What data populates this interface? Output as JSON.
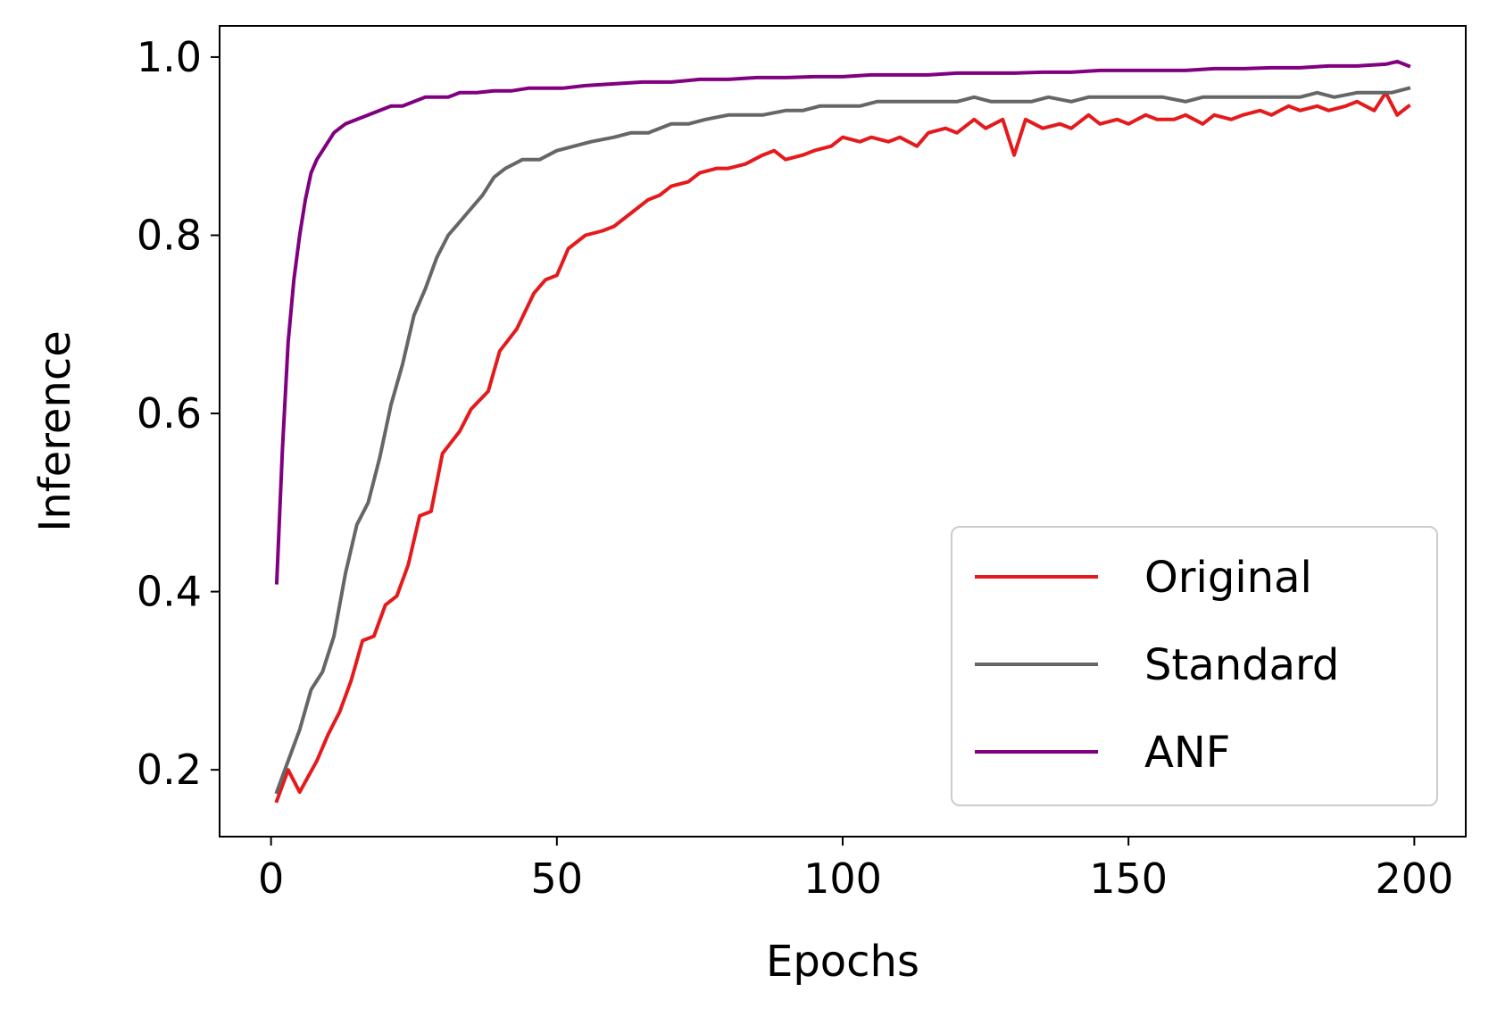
{
  "chart_data": {
    "type": "line",
    "title": "",
    "xlabel": "Epochs",
    "ylabel": "Inference",
    "xlim": [
      -9,
      209
    ],
    "ylim": [
      0.125,
      1.035
    ],
    "xticks": [
      0,
      50,
      100,
      150,
      200
    ],
    "xtick_labels": [
      "0",
      "50",
      "100",
      "150",
      "200"
    ],
    "yticks": [
      0.2,
      0.4,
      0.6,
      0.8,
      1.0
    ],
    "ytick_labels": [
      "0.2",
      "0.4",
      "0.6",
      "0.8",
      "1.0"
    ],
    "grid": false,
    "legend_position": "lower-right",
    "series": [
      {
        "name": "Original",
        "color": "#e41a1c",
        "x": [
          1,
          3,
          5,
          8,
          10,
          12,
          14,
          16,
          18,
          20,
          22,
          24,
          26,
          28,
          30,
          33,
          35,
          38,
          40,
          43,
          46,
          48,
          50,
          52,
          55,
          58,
          60,
          63,
          66,
          68,
          70,
          73,
          75,
          78,
          80,
          83,
          86,
          88,
          90,
          93,
          95,
          98,
          100,
          103,
          105,
          108,
          110,
          113,
          115,
          118,
          120,
          123,
          125,
          128,
          130,
          132,
          135,
          138,
          140,
          143,
          145,
          148,
          150,
          153,
          155,
          158,
          160,
          163,
          165,
          168,
          170,
          173,
          175,
          178,
          180,
          183,
          185,
          188,
          190,
          193,
          195,
          197,
          199
        ],
        "values": [
          0.165,
          0.2,
          0.175,
          0.21,
          0.24,
          0.265,
          0.3,
          0.345,
          0.35,
          0.385,
          0.395,
          0.43,
          0.485,
          0.49,
          0.555,
          0.58,
          0.605,
          0.625,
          0.67,
          0.695,
          0.735,
          0.75,
          0.755,
          0.785,
          0.8,
          0.805,
          0.81,
          0.825,
          0.84,
          0.845,
          0.855,
          0.86,
          0.87,
          0.875,
          0.875,
          0.88,
          0.89,
          0.895,
          0.885,
          0.89,
          0.895,
          0.9,
          0.91,
          0.905,
          0.91,
          0.905,
          0.91,
          0.9,
          0.915,
          0.92,
          0.915,
          0.93,
          0.92,
          0.93,
          0.89,
          0.93,
          0.92,
          0.925,
          0.92,
          0.935,
          0.925,
          0.93,
          0.925,
          0.935,
          0.93,
          0.93,
          0.935,
          0.925,
          0.935,
          0.93,
          0.935,
          0.94,
          0.935,
          0.945,
          0.94,
          0.945,
          0.94,
          0.945,
          0.95,
          0.94,
          0.96,
          0.935,
          0.945
        ]
      },
      {
        "name": "Standard",
        "color": "#666666",
        "x": [
          1,
          3,
          5,
          7,
          9,
          11,
          13,
          15,
          17,
          19,
          21,
          23,
          25,
          27,
          29,
          31,
          33,
          35,
          37,
          39,
          41,
          44,
          47,
          50,
          53,
          56,
          60,
          63,
          66,
          70,
          73,
          76,
          80,
          83,
          86,
          90,
          93,
          96,
          100,
          103,
          106,
          110,
          113,
          116,
          120,
          123,
          126,
          130,
          133,
          136,
          140,
          143,
          146,
          150,
          153,
          156,
          160,
          163,
          166,
          170,
          173,
          176,
          180,
          183,
          186,
          190,
          193,
          196,
          199
        ],
        "values": [
          0.175,
          0.21,
          0.245,
          0.29,
          0.31,
          0.35,
          0.42,
          0.475,
          0.5,
          0.55,
          0.61,
          0.655,
          0.71,
          0.74,
          0.775,
          0.8,
          0.815,
          0.83,
          0.845,
          0.865,
          0.875,
          0.885,
          0.885,
          0.895,
          0.9,
          0.905,
          0.91,
          0.915,
          0.915,
          0.925,
          0.925,
          0.93,
          0.935,
          0.935,
          0.935,
          0.94,
          0.94,
          0.945,
          0.945,
          0.945,
          0.95,
          0.95,
          0.95,
          0.95,
          0.95,
          0.955,
          0.95,
          0.95,
          0.95,
          0.955,
          0.95,
          0.955,
          0.955,
          0.955,
          0.955,
          0.955,
          0.95,
          0.955,
          0.955,
          0.955,
          0.955,
          0.955,
          0.955,
          0.96,
          0.955,
          0.96,
          0.96,
          0.96,
          0.965
        ]
      },
      {
        "name": "ANF",
        "color": "#800080",
        "x": [
          1,
          2,
          3,
          4,
          5,
          6,
          7,
          8,
          9,
          10,
          11,
          12,
          13,
          15,
          17,
          19,
          21,
          23,
          25,
          27,
          29,
          31,
          33,
          36,
          39,
          42,
          45,
          48,
          51,
          55,
          60,
          65,
          70,
          75,
          80,
          85,
          90,
          95,
          100,
          105,
          110,
          115,
          120,
          125,
          130,
          135,
          140,
          145,
          150,
          155,
          160,
          165,
          170,
          175,
          180,
          185,
          190,
          195,
          197,
          199
        ],
        "values": [
          0.41,
          0.56,
          0.68,
          0.75,
          0.8,
          0.84,
          0.87,
          0.885,
          0.895,
          0.905,
          0.915,
          0.92,
          0.925,
          0.93,
          0.935,
          0.94,
          0.945,
          0.945,
          0.95,
          0.955,
          0.955,
          0.955,
          0.96,
          0.96,
          0.962,
          0.962,
          0.965,
          0.965,
          0.965,
          0.968,
          0.97,
          0.972,
          0.972,
          0.975,
          0.975,
          0.977,
          0.977,
          0.978,
          0.978,
          0.98,
          0.98,
          0.98,
          0.982,
          0.982,
          0.982,
          0.983,
          0.983,
          0.985,
          0.985,
          0.985,
          0.985,
          0.987,
          0.987,
          0.988,
          0.988,
          0.99,
          0.99,
          0.992,
          0.995,
          0.99
        ]
      }
    ]
  }
}
